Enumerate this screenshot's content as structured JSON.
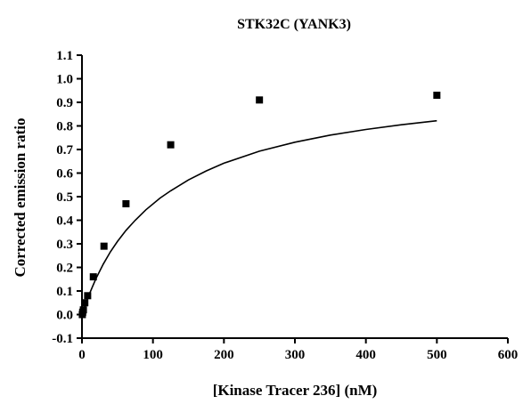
{
  "chart_data": {
    "type": "scatter",
    "title": "STK32C (YANK3)",
    "xlabel": "[Kinase Tracer 236] (nM)",
    "ylabel": "Corrected emission ratio",
    "xlim": [
      0,
      600
    ],
    "ylim": [
      -0.1,
      1.1
    ],
    "x_ticks": [
      0,
      100,
      200,
      300,
      400,
      500,
      600
    ],
    "y_ticks": [
      -0.1,
      0.0,
      0.1,
      0.2,
      0.3,
      0.4,
      0.5,
      0.6,
      0.7,
      0.8,
      0.9,
      1.0,
      1.1
    ],
    "x_tick_labels": [
      "0",
      "100",
      "200",
      "300",
      "400",
      "500",
      "600"
    ],
    "y_tick_labels": [
      "-0.1",
      "0.0",
      "0.1",
      "0.2",
      "0.3",
      "0.4",
      "0.5",
      "0.6",
      "0.7",
      "0.8",
      "0.9",
      "1.0",
      "1.1"
    ],
    "grid": false,
    "series": [
      {
        "marker": "square",
        "color": "#000000",
        "x": [
          0.5,
          1,
          2,
          4,
          8,
          16,
          31,
          62,
          125,
          250,
          500
        ],
        "y": [
          0.0,
          0.01,
          0.02,
          0.05,
          0.08,
          0.16,
          0.29,
          0.47,
          0.72,
          0.91,
          0.93
        ]
      }
    ],
    "fit_curve": {
      "type": "one-site binding",
      "x": [
        0,
        2,
        5,
        10,
        15,
        20,
        30,
        40,
        50,
        62,
        75,
        90,
        110,
        125,
        150,
        175,
        200,
        250,
        300,
        350,
        400,
        450,
        500
      ],
      "y": [
        0.0,
        0.018,
        0.044,
        0.084,
        0.12,
        0.154,
        0.214,
        0.266,
        0.31,
        0.357,
        0.4,
        0.444,
        0.494,
        0.525,
        0.571,
        0.609,
        0.642,
        0.693,
        0.731,
        0.761,
        0.785,
        0.805,
        0.822
      ]
    }
  }
}
